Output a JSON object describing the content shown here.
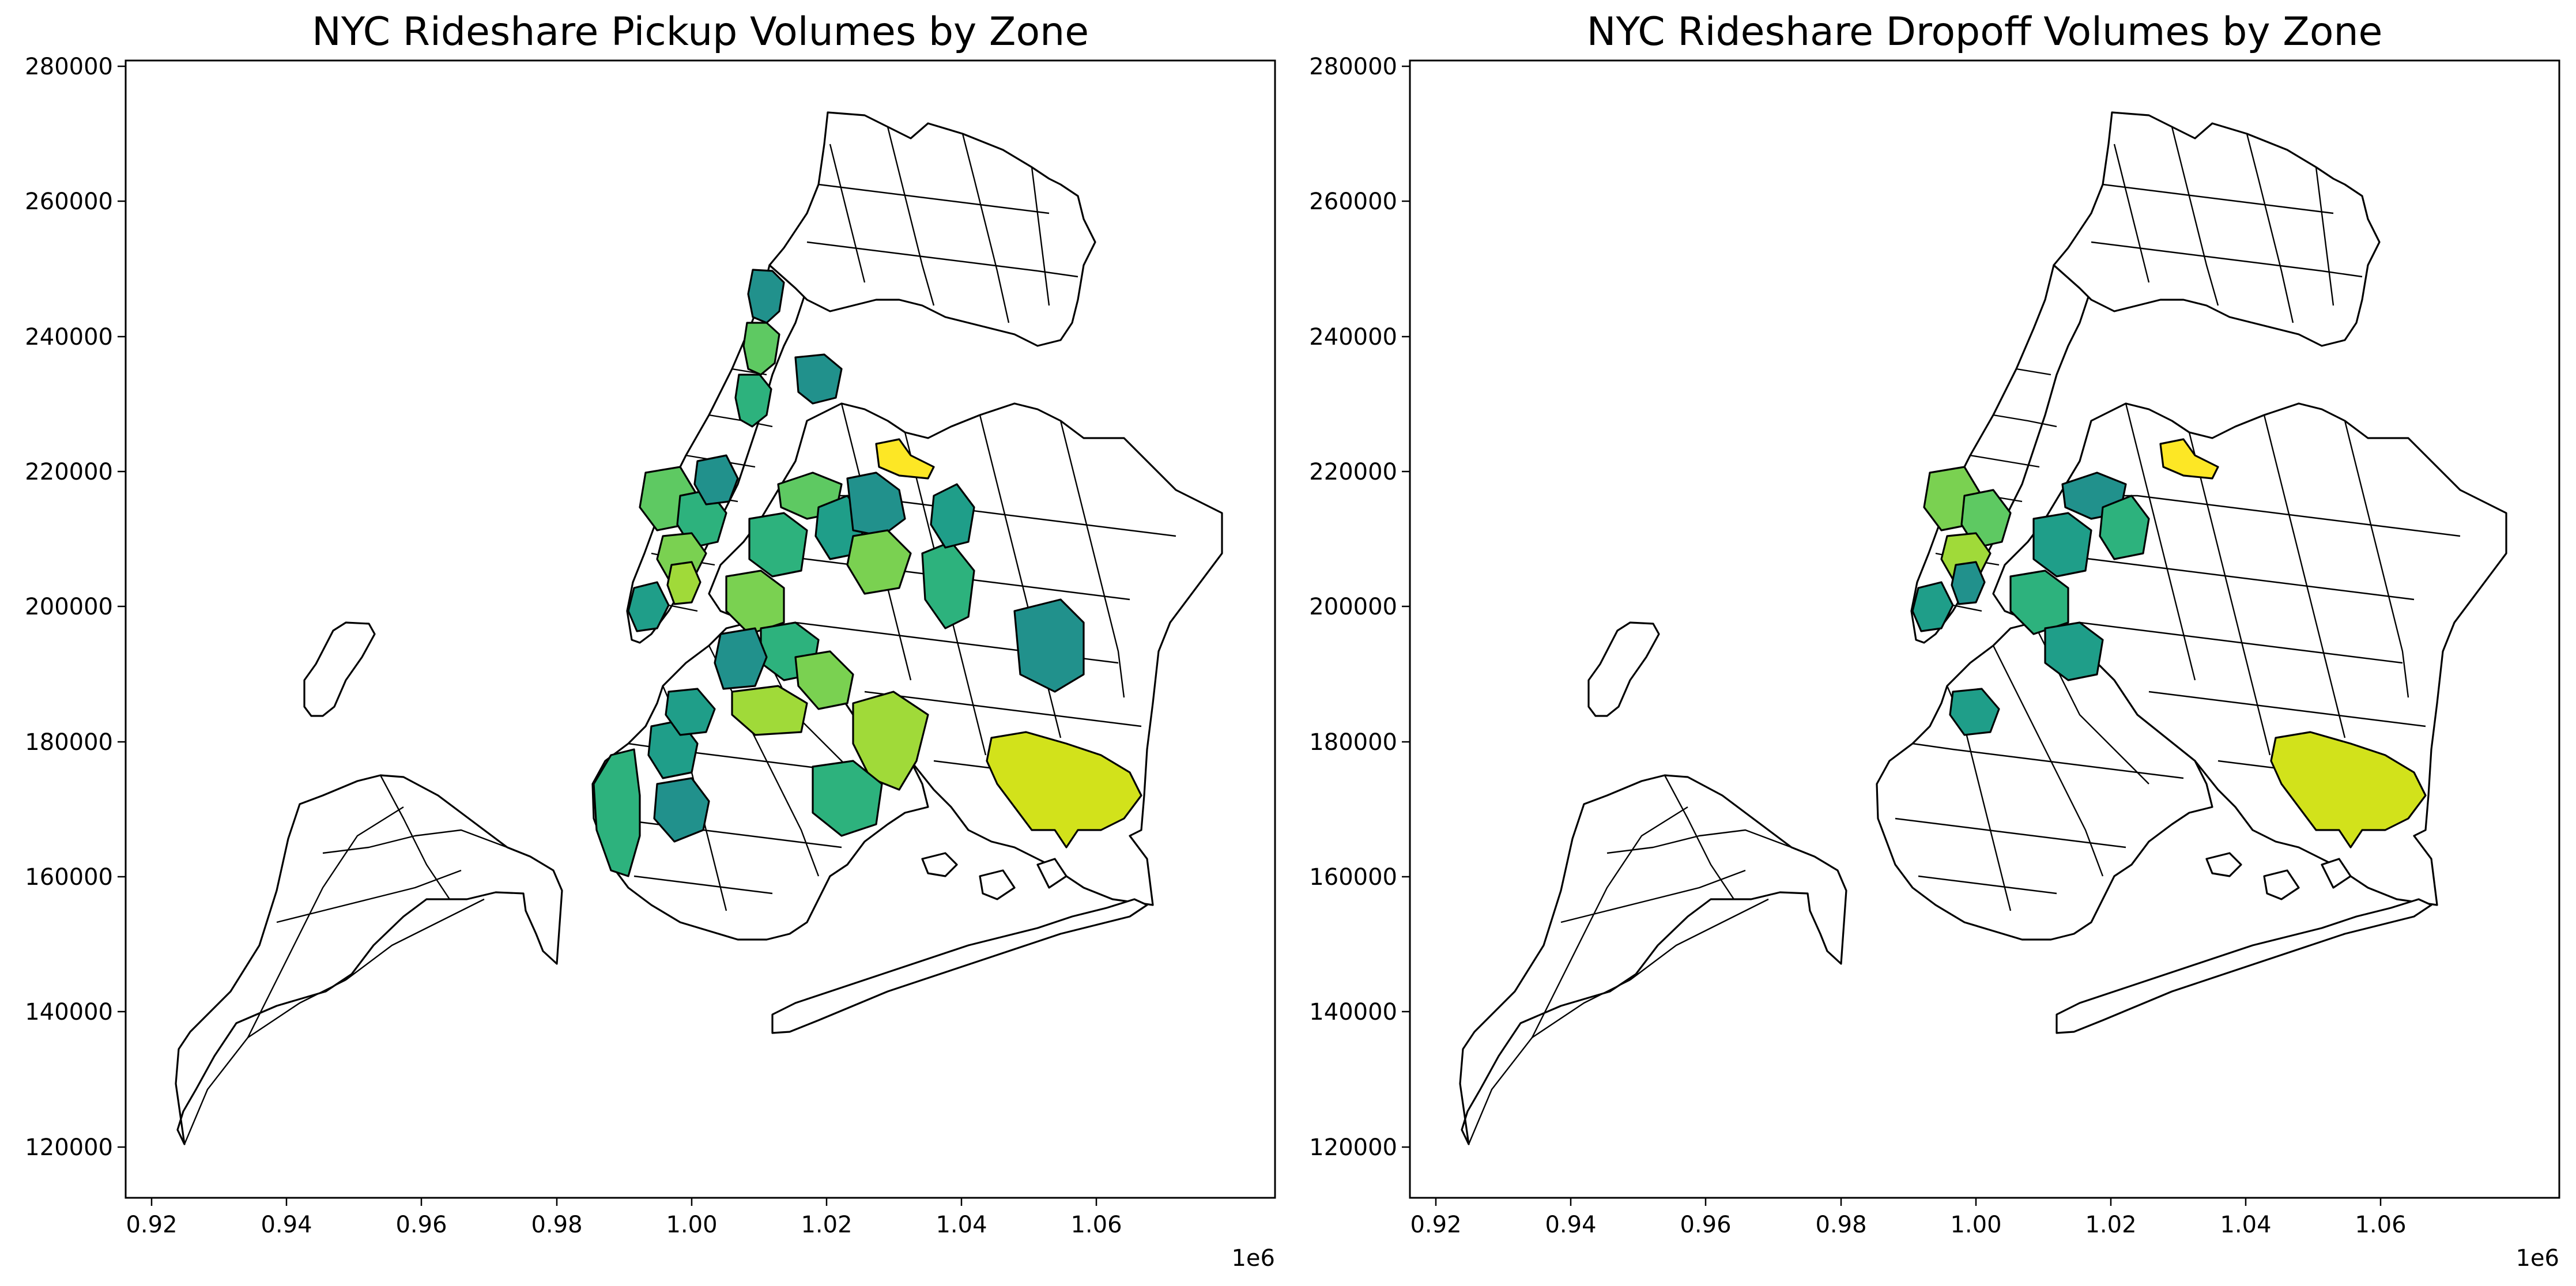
{
  "figure": {
    "panels": [
      {
        "title": "NYC Rideshare Pickup Volumes by Zone",
        "x_ticks": [
          "0.92",
          "0.94",
          "0.96",
          "0.98",
          "1.00",
          "1.02",
          "1.04",
          "1.06"
        ],
        "y_ticks": [
          "280000",
          "260000",
          "240000",
          "220000",
          "200000",
          "180000",
          "160000",
          "140000",
          "120000"
        ],
        "x_offset_label": "1e6",
        "highlighted_zones": [
          {
            "name": "upper-manhattan-a",
            "color": "#21918c"
          },
          {
            "name": "upper-manhattan-b",
            "color": "#5ec962"
          },
          {
            "name": "upper-manhattan-c",
            "color": "#2db27d"
          },
          {
            "name": "bronx-east",
            "color": "#21918c"
          },
          {
            "name": "laguardia",
            "color": "#fde725"
          },
          {
            "name": "midtown-a",
            "color": "#5ec962"
          },
          {
            "name": "midtown-b",
            "color": "#2db27d"
          },
          {
            "name": "midtown-c",
            "color": "#7ad151"
          },
          {
            "name": "midtown-d",
            "color": "#21918c"
          },
          {
            "name": "lower-manhattan-a",
            "color": "#1f9e89"
          },
          {
            "name": "lower-manhattan-b",
            "color": "#a0da39"
          },
          {
            "name": "queens-west-a",
            "color": "#5ec962"
          },
          {
            "name": "queens-west-b",
            "color": "#2db27d"
          },
          {
            "name": "queens-west-c",
            "color": "#1f9e89"
          },
          {
            "name": "queens-central-a",
            "color": "#21918c"
          },
          {
            "name": "queens-central-b",
            "color": "#7ad151"
          },
          {
            "name": "queens-central-c",
            "color": "#2db27d"
          },
          {
            "name": "queens-east-a",
            "color": "#21918c"
          },
          {
            "name": "queens-east-b",
            "color": "#1f9e89"
          },
          {
            "name": "brooklyn-north-a",
            "color": "#7ad151"
          },
          {
            "name": "brooklyn-north-b",
            "color": "#2db27d"
          },
          {
            "name": "brooklyn-north-c",
            "color": "#21918c"
          },
          {
            "name": "brooklyn-central-a",
            "color": "#a0da39"
          },
          {
            "name": "brooklyn-central-b",
            "color": "#7ad151"
          },
          {
            "name": "brooklyn-south-a",
            "color": "#a0da39"
          },
          {
            "name": "brooklyn-south-b",
            "color": "#2db27d"
          },
          {
            "name": "brooklyn-south-c",
            "color": "#1f9e89"
          },
          {
            "name": "brooklyn-west-a",
            "color": "#1f9e89"
          },
          {
            "name": "brooklyn-west-b",
            "color": "#2db27d"
          },
          {
            "name": "brooklyn-west-c",
            "color": "#21918c"
          },
          {
            "name": "jfk",
            "color": "#d2e21b"
          }
        ]
      },
      {
        "title": "NYC Rideshare Dropoff Volumes by Zone",
        "x_ticks": [
          "0.92",
          "0.94",
          "0.96",
          "0.98",
          "1.00",
          "1.02",
          "1.04",
          "1.06"
        ],
        "y_ticks": [
          "280000",
          "260000",
          "240000",
          "220000",
          "200000",
          "180000",
          "160000",
          "140000",
          "120000"
        ],
        "x_offset_label": "1e6",
        "highlighted_zones": [
          {
            "name": "laguardia",
            "color": "#fde725"
          },
          {
            "name": "midtown-a",
            "color": "#7ad151"
          },
          {
            "name": "midtown-b",
            "color": "#5ec962"
          },
          {
            "name": "midtown-c",
            "color": "#a0da39"
          },
          {
            "name": "lower-manhattan-a",
            "color": "#1f9e89"
          },
          {
            "name": "lower-manhattan-b",
            "color": "#21918c"
          },
          {
            "name": "queens-west-a",
            "color": "#21918c"
          },
          {
            "name": "queens-west-b",
            "color": "#1f9e89"
          },
          {
            "name": "queens-west-c",
            "color": "#2db27d"
          },
          {
            "name": "brooklyn-north-a",
            "color": "#2db27d"
          },
          {
            "name": "brooklyn-north-b",
            "color": "#1f9e89"
          },
          {
            "name": "brooklyn-west-a",
            "color": "#1f9e89"
          },
          {
            "name": "jfk",
            "color": "#d2e21b"
          }
        ]
      }
    ]
  }
}
